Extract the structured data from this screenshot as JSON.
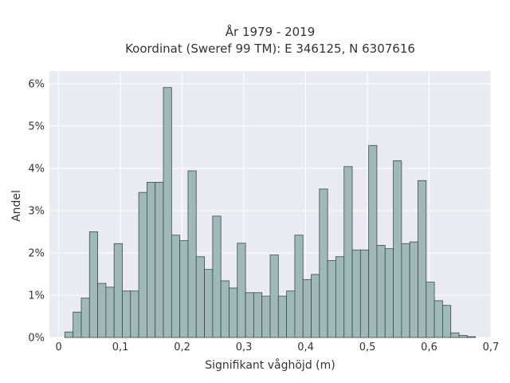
{
  "chart_data": {
    "type": "bar",
    "title": [
      "År 1979 - 2019",
      "Koordinat (Sweref 99 TM): E 346125, N 6307616"
    ],
    "xlabel": "Signifikant våghöjd (m)",
    "ylabel": "Andel",
    "xlim": [
      -0.015,
      0.7
    ],
    "ylim": [
      0,
      6.3
    ],
    "xticks": [
      0,
      0.1,
      0.2,
      0.3,
      0.4,
      0.5,
      0.6,
      0.7
    ],
    "xtick_labels": [
      "0",
      "0,1",
      "0,2",
      "0,3",
      "0,4",
      "0,5",
      "0,6",
      "0,7"
    ],
    "yticks": [
      0,
      1,
      2,
      3,
      4,
      5,
      6
    ],
    "ytick_labels": [
      "0%",
      "1%",
      "2%",
      "3%",
      "4%",
      "5%",
      "6%"
    ],
    "bin_width": 0.0133,
    "bin_starts": [
      0.01,
      0.0233,
      0.0366,
      0.0499,
      0.0632,
      0.0765,
      0.0898,
      0.1031,
      0.1164,
      0.1297,
      0.143,
      0.1563,
      0.1696,
      0.1829,
      0.1962,
      0.2095,
      0.2228,
      0.2361,
      0.2494,
      0.2627,
      0.276,
      0.2893,
      0.3026,
      0.3159,
      0.3292,
      0.3425,
      0.3558,
      0.3691,
      0.3824,
      0.3957,
      0.409,
      0.4223,
      0.4356,
      0.4489,
      0.4622,
      0.4755,
      0.4888,
      0.5021,
      0.5154,
      0.5287,
      0.542,
      0.5553,
      0.5686,
      0.5819,
      0.5952,
      0.6085,
      0.6218,
      0.6351,
      0.6484,
      0.6617
    ],
    "values": [
      0.13,
      0.6,
      0.93,
      2.5,
      1.28,
      1.19,
      2.22,
      1.1,
      1.1,
      3.43,
      3.67,
      3.67,
      5.91,
      2.42,
      2.29,
      3.94,
      1.91,
      1.61,
      2.87,
      1.34,
      1.17,
      2.23,
      1.06,
      1.06,
      0.98,
      1.95,
      0.98,
      1.1,
      2.42,
      1.37,
      1.49,
      3.51,
      1.82,
      1.91,
      4.04,
      2.07,
      2.07,
      4.54,
      2.18,
      2.1,
      4.18,
      2.22,
      2.26,
      3.71,
      1.31,
      0.87,
      0.76,
      0.11,
      0.05,
      0.02
    ],
    "grid": true,
    "colors": {
      "bar_fill": "#9fb8b8",
      "bar_edge": "#3f4a4a",
      "plot_background": "#eaeaf2",
      "grid": "#ffffff",
      "text": "#333333"
    }
  }
}
